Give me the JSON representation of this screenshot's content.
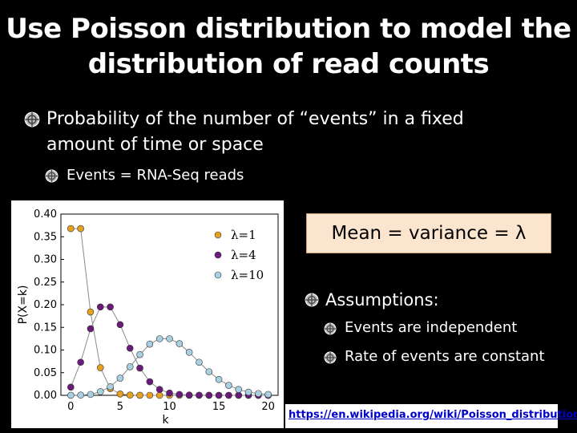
{
  "title": {
    "line1": "Use Poisson distribution to model the",
    "line2": "distribution of read counts"
  },
  "bullets": {
    "definition": "Probability of the number of “events” in a fixed amount of time or space",
    "events": "Events = RNA-Seq reads"
  },
  "mean_box": {
    "text": "Mean = variance = λ"
  },
  "assumptions": {
    "heading": "Assumptions:",
    "items": [
      "Events are independent",
      "Rate of events are constant"
    ]
  },
  "link": {
    "text": "https://en.wikipedia.org/wiki/Poisson_distribution"
  },
  "icons": {
    "bullet": "target-bullet-icon"
  },
  "chart_data": {
    "type": "line",
    "xlabel": "k",
    "ylabel": "P(X=k)",
    "xlim": [
      -1,
      21
    ],
    "ylim": [
      0,
      0.4
    ],
    "xticks": [
      0,
      5,
      10,
      15,
      20
    ],
    "yticks": [
      0.0,
      0.05,
      0.1,
      0.15,
      0.2,
      0.25,
      0.3,
      0.35,
      0.4
    ],
    "ytick_labels": [
      "0.00",
      "0.05",
      "0.10",
      "0.15",
      "0.20",
      "0.25",
      "0.30",
      "0.35",
      "0.40"
    ],
    "x": [
      0,
      1,
      2,
      3,
      4,
      5,
      6,
      7,
      8,
      9,
      10,
      11,
      12,
      13,
      14,
      15,
      16,
      17,
      18,
      19,
      20
    ],
    "legend_position": "top-right",
    "series": [
      {
        "name": "λ=1",
        "color": "#e8a020",
        "values": [
          0.368,
          0.368,
          0.184,
          0.061,
          0.015,
          0.003,
          0.0005,
          0.0001,
          0,
          0,
          0,
          0,
          0,
          0,
          0,
          0,
          0,
          0,
          0,
          0,
          0
        ]
      },
      {
        "name": "λ=4",
        "color": "#6a1a7a",
        "values": [
          0.018,
          0.073,
          0.147,
          0.195,
          0.195,
          0.156,
          0.104,
          0.06,
          0.03,
          0.013,
          0.005,
          0.002,
          0.0006,
          0.0002,
          0.0001,
          0,
          0,
          0,
          0,
          0,
          0
        ]
      },
      {
        "name": "λ=10",
        "color": "#a8d0e0",
        "values": [
          5e-05,
          0.0005,
          0.002,
          0.008,
          0.019,
          0.038,
          0.063,
          0.09,
          0.113,
          0.125,
          0.125,
          0.114,
          0.095,
          0.073,
          0.052,
          0.035,
          0.022,
          0.013,
          0.007,
          0.004,
          0.002
        ]
      }
    ]
  }
}
